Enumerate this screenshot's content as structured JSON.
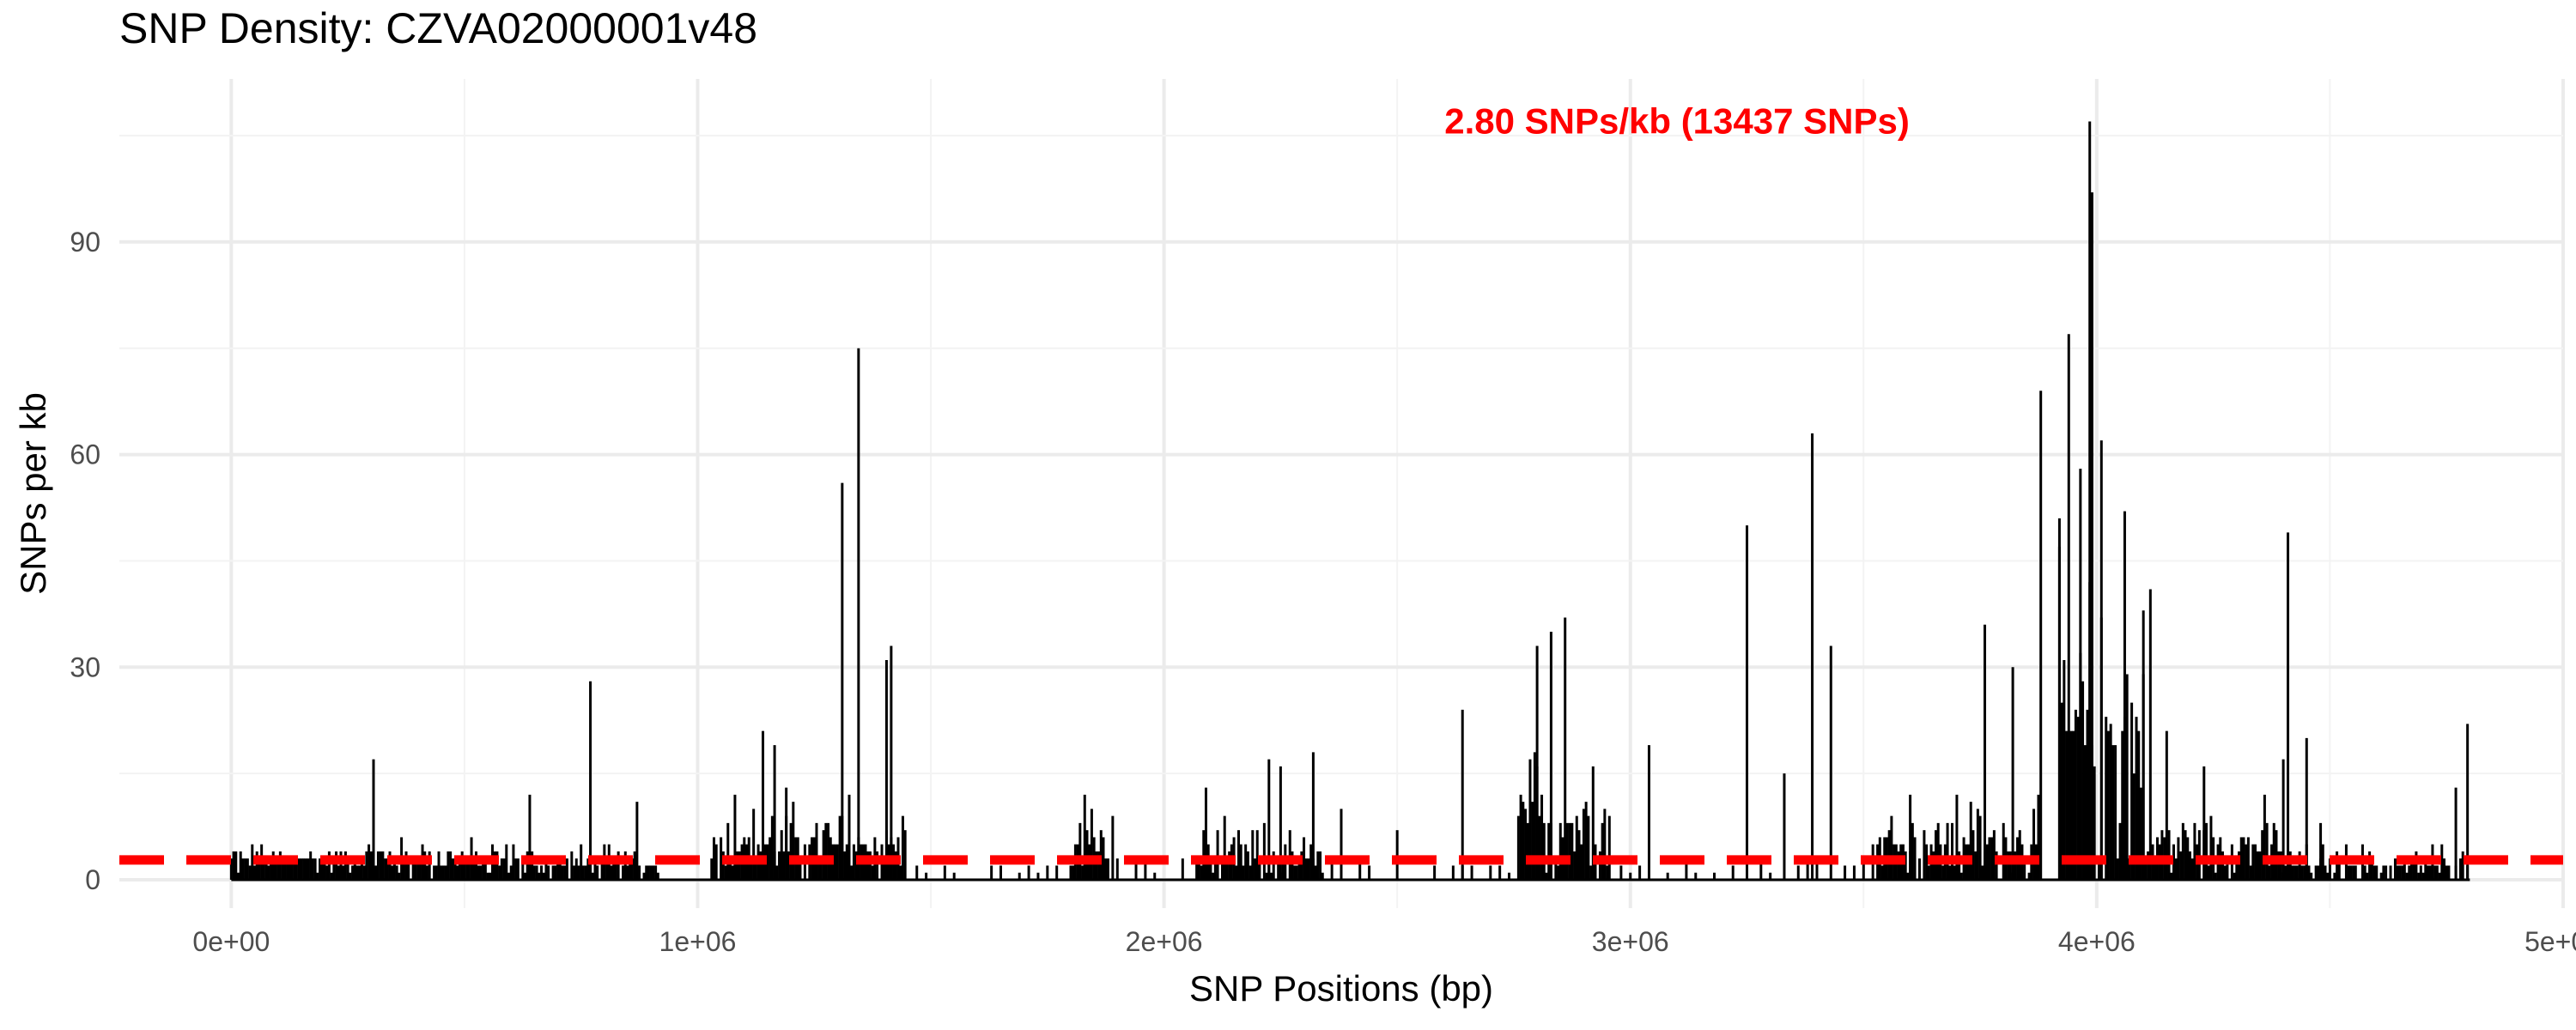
{
  "chart_data": {
    "type": "bar",
    "title": "SNP Density: CZVA02000001v48",
    "xlabel": "SNP Positions (bp)",
    "ylabel": "SNPs per kb",
    "xlim": [
      -240000,
      5000000
    ],
    "ylim": [
      -4,
      113
    ],
    "x_ticks": [
      0,
      1000000,
      2000000,
      3000000,
      4000000,
      5000000
    ],
    "x_tick_labels": [
      "0e+00",
      "1e+06",
      "2e+06",
      "3e+06",
      "4e+06",
      "5e+06"
    ],
    "y_ticks": [
      0,
      30,
      60,
      90
    ],
    "y_tick_labels": [
      "0",
      "30",
      "60",
      "90"
    ],
    "grid": true,
    "reference_line": {
      "value": 2.8,
      "style": "dashed",
      "color": "#ff0000"
    },
    "annotation": {
      "text": "2.80 SNPs/kb (13437 SNPs)",
      "color": "#ff0000",
      "x": 3100000,
      "y": 107
    },
    "bar_color": "#000000",
    "segments": [
      {
        "from": 0,
        "to": 290000,
        "base": 3,
        "spread": 3
      },
      {
        "from": 290000,
        "to": 620000,
        "base": 3,
        "spread": 4
      },
      {
        "from": 620000,
        "to": 920000,
        "base": 2,
        "spread": 4
      },
      {
        "from": 1030000,
        "to": 1450000,
        "base": 5,
        "spread": 8
      },
      {
        "from": 1800000,
        "to": 1880000,
        "base": 5,
        "spread": 6
      },
      {
        "from": 2070000,
        "to": 2340000,
        "base": 3,
        "spread": 6
      },
      {
        "from": 2760000,
        "to": 2960000,
        "base": 8,
        "spread": 14
      },
      {
        "from": 3520000,
        "to": 3880000,
        "base": 5,
        "spread": 9
      },
      {
        "from": 3920000,
        "to": 4120000,
        "base": 20,
        "spread": 30
      },
      {
        "from": 4120000,
        "to": 4400000,
        "base": 5,
        "spread": 8
      },
      {
        "from": 4400000,
        "to": 4800000,
        "base": 2,
        "spread": 4
      }
    ],
    "sparse_ranges": [
      [
        1450000,
        1800000
      ],
      [
        1880000,
        2070000
      ],
      [
        2340000,
        2760000
      ],
      [
        2960000,
        3520000
      ]
    ],
    "peaks": [
      {
        "x": 305000,
        "y": 17
      },
      {
        "x": 640000,
        "y": 12
      },
      {
        "x": 770000,
        "y": 28
      },
      {
        "x": 870000,
        "y": 11
      },
      {
        "x": 1080000,
        "y": 12
      },
      {
        "x": 1140000,
        "y": 21
      },
      {
        "x": 1165000,
        "y": 19
      },
      {
        "x": 1190000,
        "y": 13
      },
      {
        "x": 1310000,
        "y": 56
      },
      {
        "x": 1345000,
        "y": 75
      },
      {
        "x": 1325000,
        "y": 12
      },
      {
        "x": 1405000,
        "y": 31
      },
      {
        "x": 1415000,
        "y": 33
      },
      {
        "x": 1830000,
        "y": 12
      },
      {
        "x": 1890000,
        "y": 9
      },
      {
        "x": 2090000,
        "y": 13
      },
      {
        "x": 2225000,
        "y": 17
      },
      {
        "x": 2250000,
        "y": 16
      },
      {
        "x": 2320000,
        "y": 18
      },
      {
        "x": 2380000,
        "y": 10
      },
      {
        "x": 2500000,
        "y": 7
      },
      {
        "x": 2640000,
        "y": 24
      },
      {
        "x": 2800000,
        "y": 33
      },
      {
        "x": 2830000,
        "y": 35
      },
      {
        "x": 2860000,
        "y": 37
      },
      {
        "x": 2920000,
        "y": 16
      },
      {
        "x": 3040000,
        "y": 19
      },
      {
        "x": 3250000,
        "y": 50
      },
      {
        "x": 3330000,
        "y": 15
      },
      {
        "x": 3390000,
        "y": 63
      },
      {
        "x": 3430000,
        "y": 33
      },
      {
        "x": 3600000,
        "y": 12
      },
      {
        "x": 3700000,
        "y": 12
      },
      {
        "x": 3760000,
        "y": 36
      },
      {
        "x": 3820000,
        "y": 30
      },
      {
        "x": 3880000,
        "y": 69
      },
      {
        "x": 3920000,
        "y": 51
      },
      {
        "x": 3940000,
        "y": 77
      },
      {
        "x": 3965000,
        "y": 58
      },
      {
        "x": 3985000,
        "y": 107
      },
      {
        "x": 3990000,
        "y": 97
      },
      {
        "x": 4010000,
        "y": 62
      },
      {
        "x": 4060000,
        "y": 52
      },
      {
        "x": 4100000,
        "y": 38
      },
      {
        "x": 4150000,
        "y": 21
      },
      {
        "x": 4230000,
        "y": 16
      },
      {
        "x": 4400000,
        "y": 17
      },
      {
        "x": 4410000,
        "y": 49
      },
      {
        "x": 4450000,
        "y": 20
      },
      {
        "x": 4480000,
        "y": 8
      },
      {
        "x": 4770000,
        "y": 13
      },
      {
        "x": 4795000,
        "y": 22
      }
    ]
  }
}
